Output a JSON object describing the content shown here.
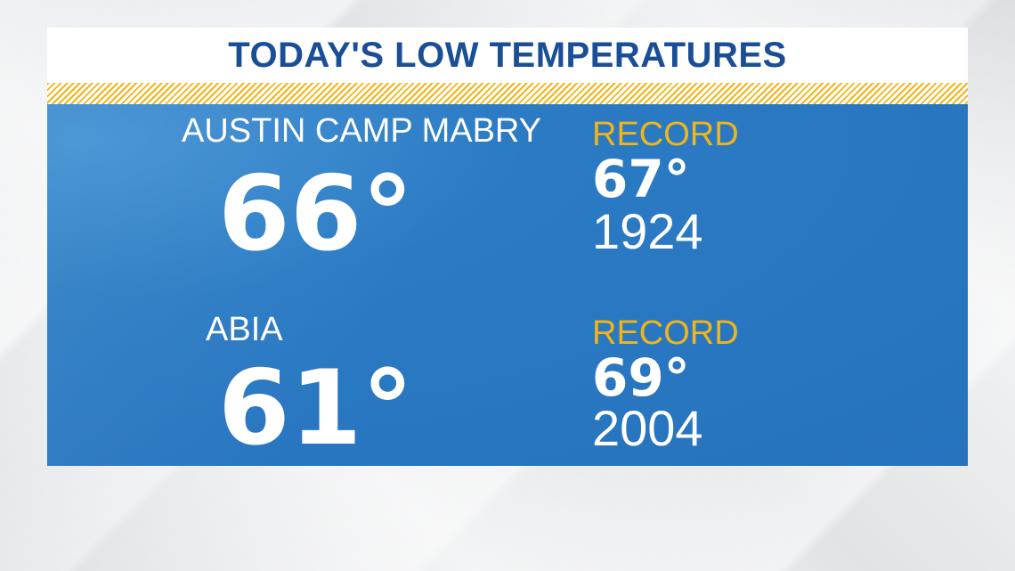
{
  "graphic": {
    "title": "TODAY'S LOW TEMPERATURES",
    "colors": {
      "title_text": "#1a4f96",
      "panel_blue": "#2672bd",
      "accent_gold": "#f2b418",
      "text_white": "#ffffff"
    }
  },
  "stations": [
    {
      "name": "AUSTIN CAMP MABRY",
      "low_temp": "66°",
      "record_label": "RECORD",
      "record_temp": "67°",
      "record_year": "1924"
    },
    {
      "name": "ABIA",
      "low_temp": "61°",
      "record_label": "RECORD",
      "record_temp": "69°",
      "record_year": "2004"
    }
  ]
}
